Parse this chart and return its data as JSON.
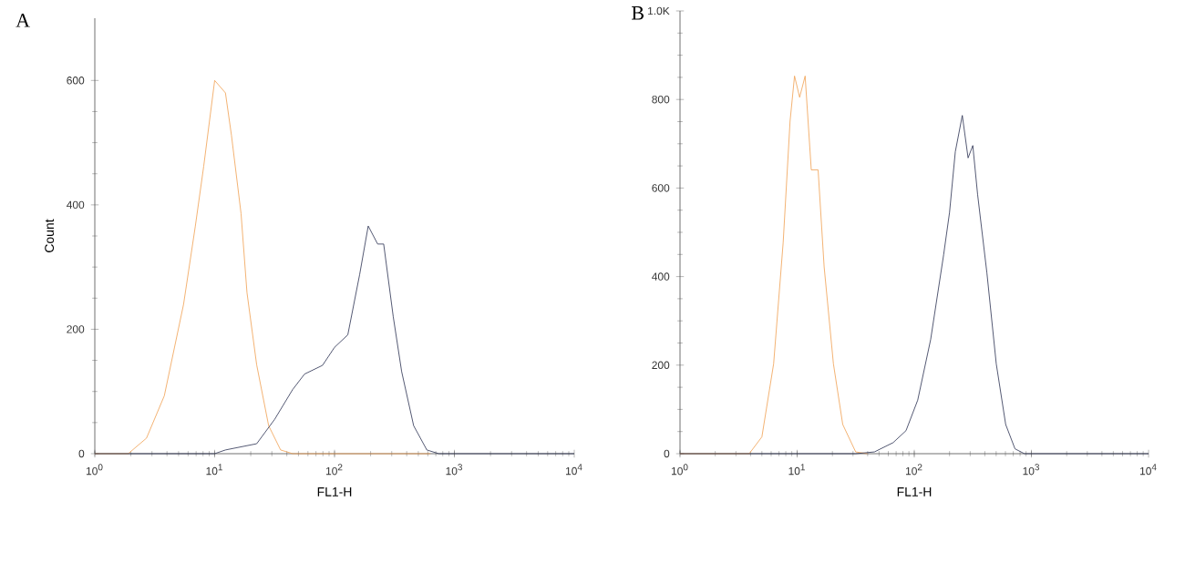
{
  "chart_data": [
    {
      "type": "line",
      "title": "A",
      "xlabel": "FL1-H",
      "ylabel": "Count",
      "log": "x",
      "xlim": [
        1,
        10000
      ],
      "ylim": [
        0,
        700
      ],
      "xticks": [
        {
          "value": 1,
          "label": "10$^{0}$"
        },
        {
          "value": 10,
          "label": "10$^{1}$"
        },
        {
          "value": 100,
          "label": "10$^{2}$"
        },
        {
          "value": 1000,
          "label": "10$^{3}$"
        },
        {
          "value": 10000,
          "label": "10$^{4}$"
        }
      ],
      "yticks": [
        0,
        200,
        400,
        600
      ],
      "series": [
        {
          "color": "#f0a050",
          "x": [
            1,
            1.9,
            2.7,
            3.8,
            5.5,
            6.9,
            8.1,
            10,
            12.3,
            13.8,
            16.6,
            18.6,
            22.4,
            28.2,
            35.5,
            44.7,
            630
          ],
          "values": [
            0,
            0,
            25,
            93,
            240,
            366,
            462,
            600,
            580,
            512,
            386,
            259,
            143,
            45,
            6,
            0,
            0
          ]
        },
        {
          "color": "#2a3050",
          "x": [
            1,
            10,
            12.3,
            22.4,
            31.6,
            44.7,
            56.2,
            79.4,
            100,
            129,
            162,
            191,
            229,
            257,
            309,
            363,
            457,
            589,
            741,
            10000
          ],
          "values": [
            0,
            0,
            6,
            16,
            55,
            103,
            128,
            142,
            171,
            191,
            288,
            366,
            337,
            337,
            220,
            132,
            45,
            6,
            0,
            0
          ]
        }
      ]
    },
    {
      "type": "line",
      "title": "B",
      "xlabel": "FL1-H",
      "log": "x",
      "xlim": [
        1,
        10000
      ],
      "ylim": [
        0,
        1000
      ],
      "xticks": [
        {
          "value": 1,
          "label": "10$^{0}$"
        },
        {
          "value": 10,
          "label": "10$^{1}$"
        },
        {
          "value": 100,
          "label": "10$^{2}$"
        },
        {
          "value": 1000,
          "label": "10$^{3}$"
        },
        {
          "value": 10000,
          "label": "10$^{4}$"
        }
      ],
      "yticks": [
        0,
        200,
        400,
        600,
        800,
        {
          "value": 1000,
          "label": "1.0K"
        }
      ],
      "series": [
        {
          "color": "#f0a050",
          "x": [
            1,
            3.9,
            5,
            6.3,
            7.6,
            8.7,
            9.5,
            10.5,
            11.7,
            13.2,
            15.1,
            17,
            20.4,
            24.5,
            31.6,
            39.8
          ],
          "values": [
            0,
            0,
            38,
            203,
            477,
            751,
            853,
            805,
            853,
            641,
            641,
            422,
            203,
            66,
            4,
            0
          ]
        },
        {
          "color": "#2a3050",
          "x": [
            1,
            31.6,
            45.7,
            66,
            85,
            107,
            138,
            178,
            200,
            224,
            257,
            288,
            316,
            347,
            417,
            501,
            603,
            724,
            871,
            10000
          ],
          "values": [
            0,
            0,
            4,
            25,
            52,
            121,
            258,
            449,
            545,
            682,
            764,
            668,
            696,
            586,
            408,
            203,
            66,
            11,
            0,
            0
          ]
        }
      ]
    }
  ]
}
